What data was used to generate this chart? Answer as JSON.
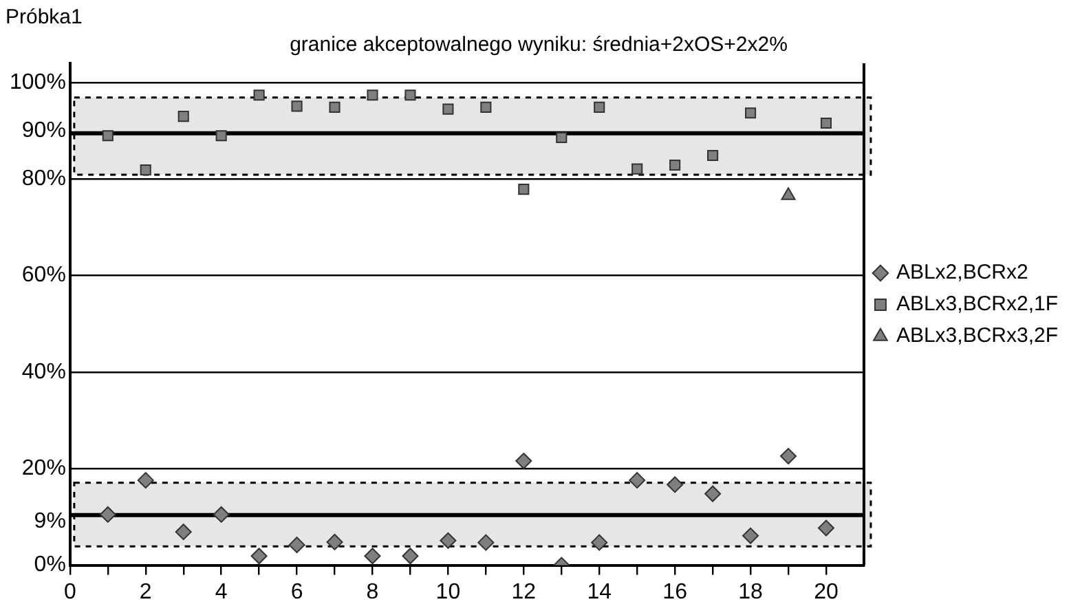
{
  "chart_data": {
    "type": "scatter",
    "title": "Próbka1",
    "subtitle": "granice akceptowalnego wyniku: średnia+2xOS+2x2%",
    "xlim": [
      0,
      21
    ],
    "xticks": [
      0,
      {
        "value": 1,
        "label": null
      },
      2,
      {
        "value": 3,
        "label": null
      },
      4,
      {
        "value": 5,
        "label": null
      },
      6,
      {
        "value": 7,
        "label": null
      },
      8,
      {
        "value": 9,
        "label": null
      },
      10,
      {
        "value": 11,
        "label": null
      },
      12,
      {
        "value": 13,
        "label": null
      },
      14,
      {
        "value": 15,
        "label": null
      },
      16,
      {
        "value": 17,
        "label": null
      },
      18,
      {
        "value": 19,
        "label": null
      },
      20
    ],
    "ylim": [
      0,
      104
    ],
    "yticks": [
      {
        "value": 0,
        "label": "0%"
      },
      {
        "value": 9,
        "label": "9%"
      },
      {
        "value": 20,
        "label": "20%"
      },
      {
        "value": 40,
        "label": "40%"
      },
      {
        "value": 60,
        "label": "60%"
      },
      {
        "value": 80,
        "label": "80%"
      },
      {
        "value": 90,
        "label": "90%"
      },
      {
        "value": 100,
        "label": "100%"
      }
    ],
    "grid": "y",
    "legend": "right",
    "ref_lines": [
      {
        "axis": "y",
        "value": 89.5,
        "color": "#000000",
        "line_style": "solid"
      },
      {
        "axis": "y",
        "value": 10.4,
        "color": "#000000",
        "line_style": "solid"
      }
    ],
    "bands": [
      {
        "axis": "y",
        "from": 80.9,
        "to": 96.9,
        "color": "#e6e6e6"
      },
      {
        "axis": "y",
        "from": 3.9,
        "to": 17.1,
        "color": "#e6e6e6"
      }
    ],
    "series": [
      {
        "name": "ABLx2,BCRx2",
        "color": "#7f7f7f",
        "marker": "diamond",
        "x": [
          1,
          2,
          3,
          4,
          5,
          6,
          7,
          8,
          9,
          10,
          11,
          12,
          13,
          14,
          15,
          16,
          17,
          18,
          19,
          20
        ],
        "values": [
          10.5,
          17.6,
          6.9,
          10.5,
          1.9,
          4.2,
          4.8,
          1.9,
          1.9,
          5.1,
          4.7,
          21.6,
          0,
          4.7,
          17.6,
          16.7,
          14.8,
          6.1,
          22.6,
          7.7
        ]
      },
      {
        "name": "ABLx3,BCRx2,1F",
        "color": "#7f7f7f",
        "marker": "square",
        "x": [
          1,
          2,
          3,
          4,
          5,
          6,
          7,
          8,
          9,
          10,
          11,
          12,
          13,
          14,
          15,
          16,
          17,
          18,
          20
        ],
        "values": [
          89,
          81.9,
          93,
          89,
          97.4,
          95.1,
          94.9,
          97.4,
          97.4,
          94.5,
          94.9,
          77.9,
          88.6,
          94.9,
          82.1,
          82.9,
          84.9,
          93.7,
          91.6
        ]
      },
      {
        "name": "ABLx3,BCRx3,2F",
        "color": "#7f7f7f",
        "marker": "triangle",
        "x": [
          19
        ],
        "values": [
          76.6
        ]
      }
    ]
  }
}
